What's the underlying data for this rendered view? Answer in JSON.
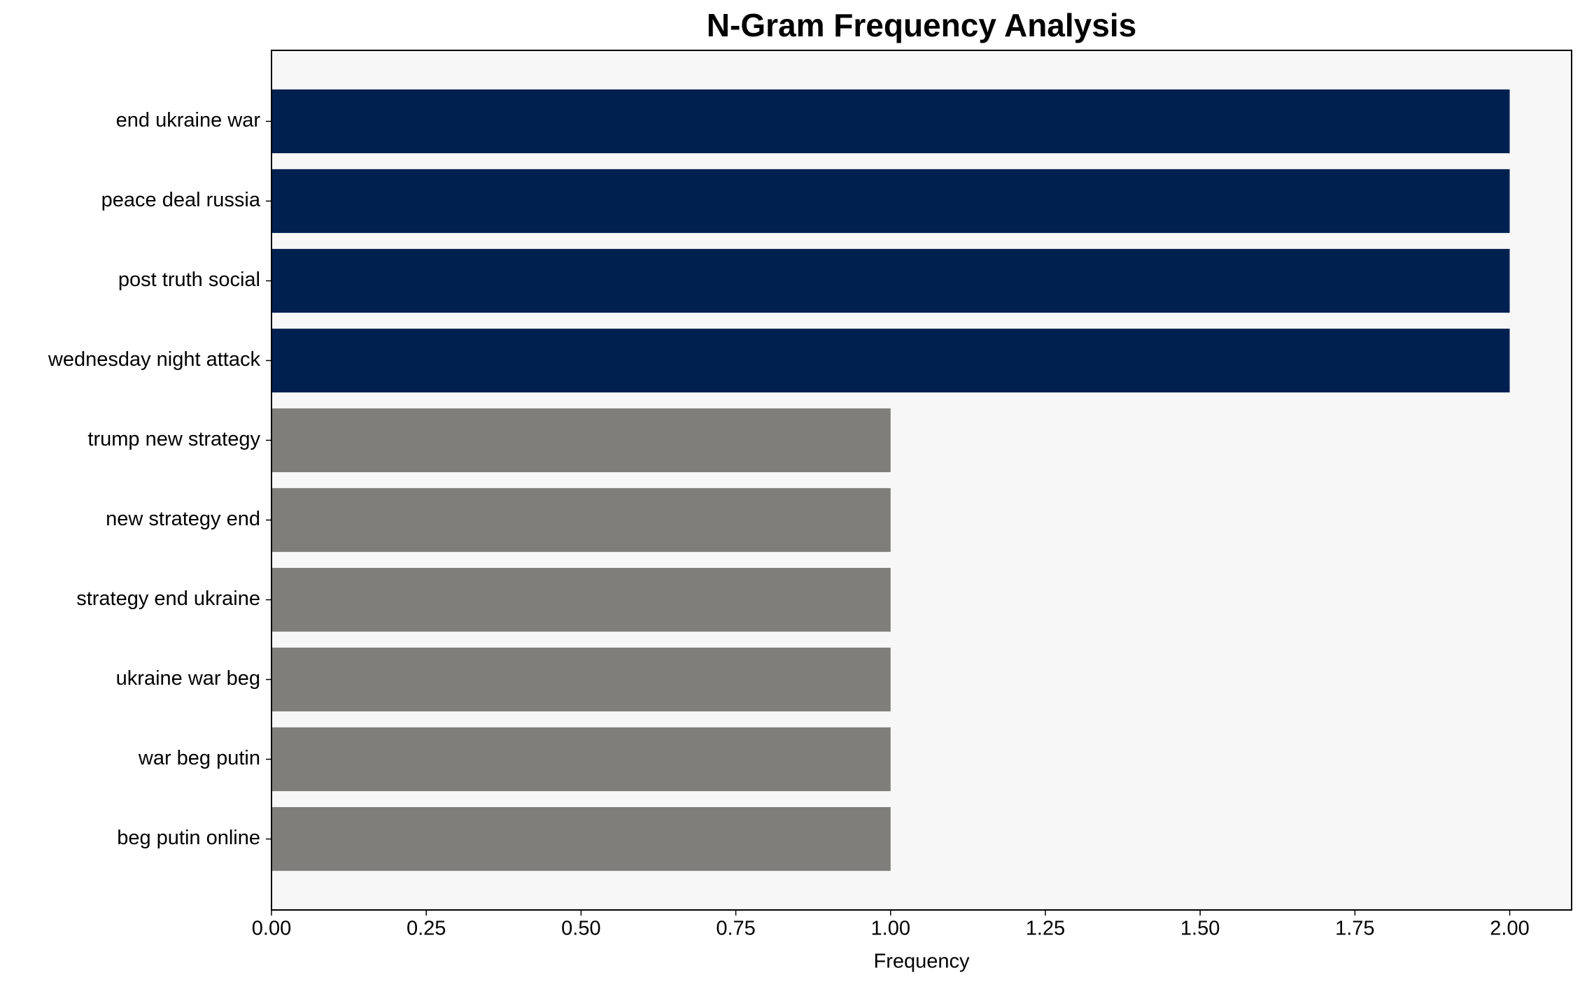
{
  "chart_data": {
    "type": "barh",
    "title": "N-Gram Frequency Analysis",
    "xlabel": "Frequency",
    "categories": [
      "end ukraine war",
      "peace deal russia",
      "post truth social",
      "wednesday night attack",
      "trump new strategy",
      "new strategy end",
      "strategy end ukraine",
      "ukraine war beg",
      "war beg putin",
      "beg putin online"
    ],
    "values": [
      2,
      2,
      2,
      2,
      1,
      1,
      1,
      1,
      1,
      1
    ],
    "colors": [
      "#002050",
      "#002050",
      "#002050",
      "#002050",
      "#7f7e7a",
      "#7f7e7a",
      "#7f7e7a",
      "#7f7e7a",
      "#7f7e7a",
      "#7f7e7a"
    ],
    "xlim": [
      0,
      2.1
    ],
    "xticks": [
      {
        "value": 0,
        "label": "0.00"
      },
      {
        "value": 0.25,
        "label": "0.25"
      },
      {
        "value": 0.5,
        "label": "0.50"
      },
      {
        "value": 0.75,
        "label": "0.75"
      },
      {
        "value": 1,
        "label": "1.00"
      },
      {
        "value": 1.25,
        "label": "1.25"
      },
      {
        "value": 1.5,
        "label": "1.50"
      },
      {
        "value": 1.75,
        "label": "1.75"
      },
      {
        "value": 2,
        "label": "2.00"
      }
    ],
    "grid": false
  }
}
